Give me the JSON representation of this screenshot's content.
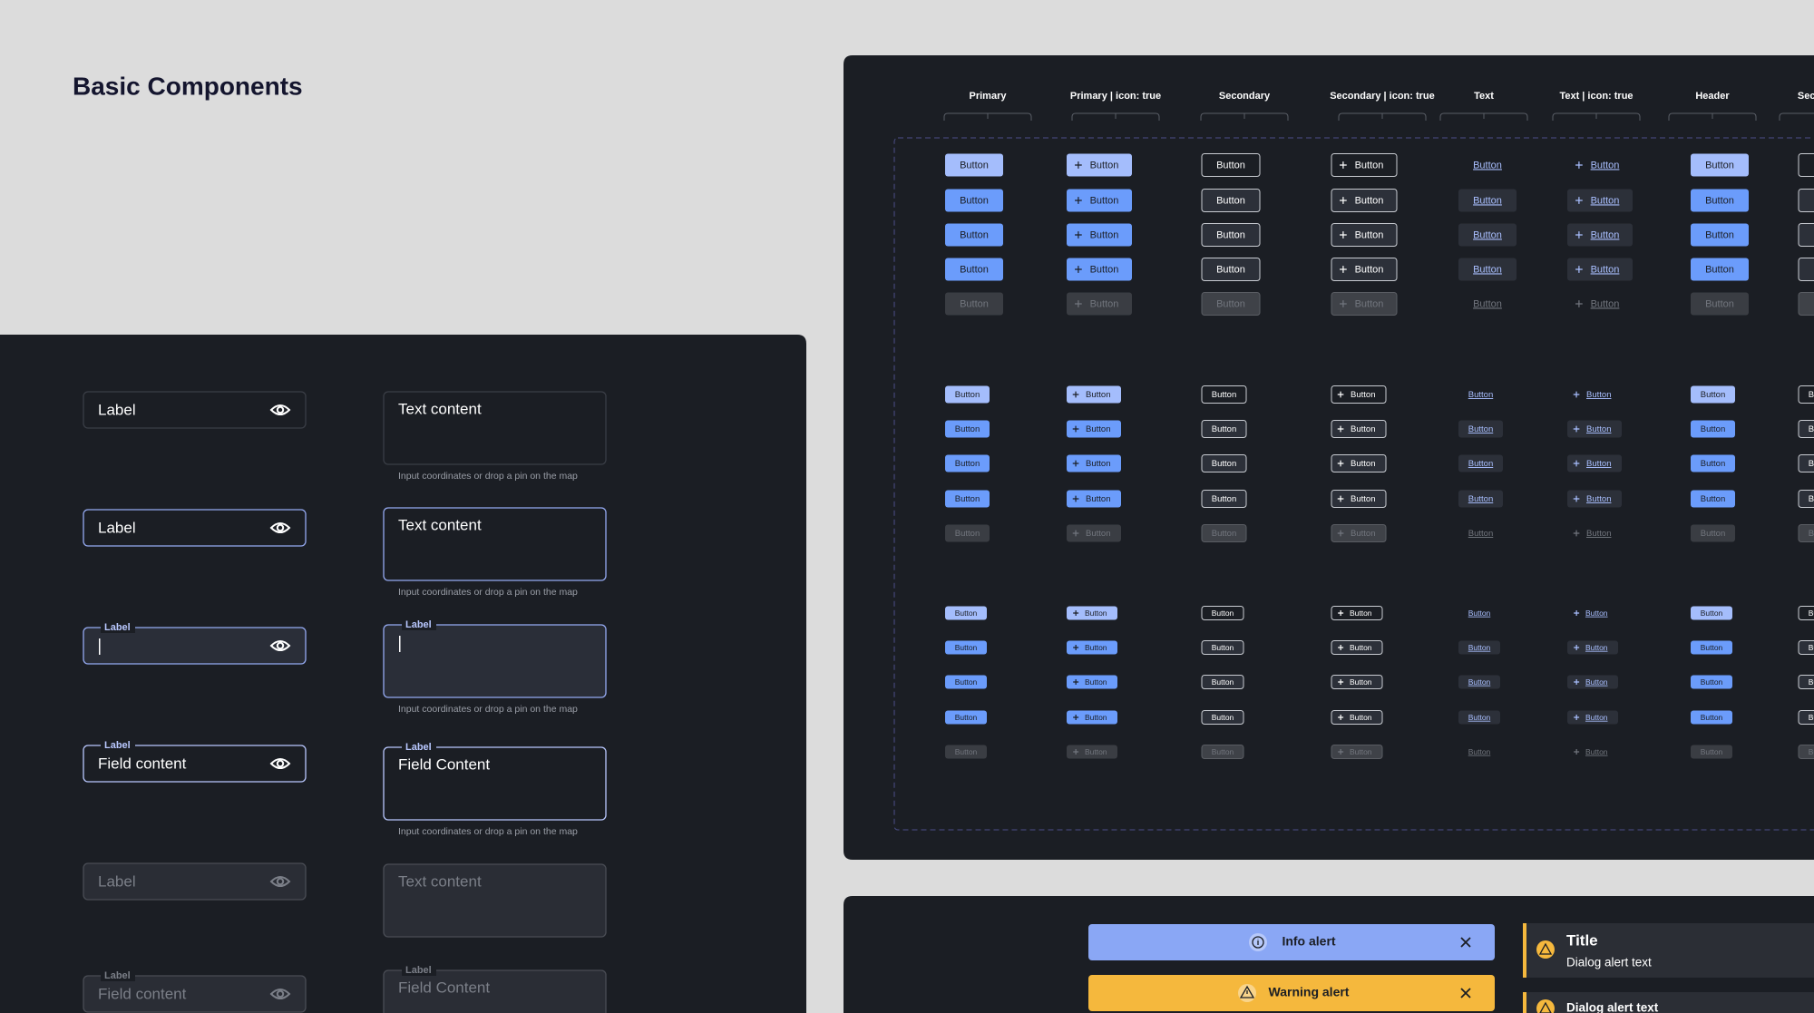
{
  "header": {
    "title": "Basic Components"
  },
  "inputs": {
    "label": "Label",
    "field_content": "Field content",
    "text_content": "Text content",
    "textarea_field_content": "Field Content",
    "helper": "Input coordinates or drop a pin on the map"
  },
  "buttons": {
    "columns": [
      "Primary",
      "Primary | icon: true",
      "Secondary",
      "Secondary | icon: true",
      "Text",
      "Text | icon: true",
      "Header",
      "Secondary"
    ],
    "label": "Button"
  },
  "alerts": {
    "info": "Info alert",
    "warning": "Warning alert",
    "dialog_title": "Title",
    "dialog_text": "Dialog alert text"
  }
}
